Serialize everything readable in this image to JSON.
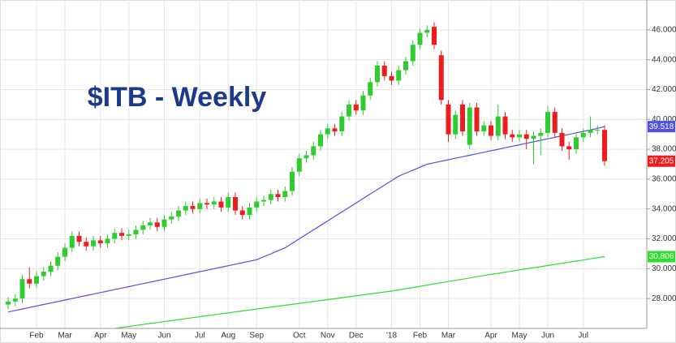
{
  "chart_data": {
    "type": "candlestick",
    "title": "$ITB - Weekly",
    "categories": [
      null,
      null,
      null,
      null,
      "Feb",
      null,
      null,
      null,
      "Mar",
      null,
      null,
      null,
      null,
      "Apr",
      null,
      null,
      null,
      "May",
      null,
      null,
      null,
      null,
      "Jun",
      null,
      null,
      null,
      null,
      "Jul",
      null,
      null,
      null,
      "Aug",
      null,
      null,
      null,
      "Sep",
      null,
      null,
      null,
      null,
      null,
      "Oct",
      null,
      null,
      null,
      "Nov",
      null,
      null,
      null,
      "Dec",
      null,
      null,
      null,
      null,
      "'18",
      null,
      null,
      null,
      "Feb",
      null,
      null,
      null,
      "Mar",
      null,
      null,
      null,
      null,
      null,
      "Apr",
      null,
      null,
      null,
      "May",
      null,
      null,
      null,
      "Jun",
      null,
      null,
      null,
      null,
      "Jul",
      null,
      null,
      null
    ],
    "open": [
      27.6,
      27.8,
      28.0,
      29.3,
      29.0,
      29.5,
      29.8,
      30.2,
      30.8,
      31.4,
      32.2,
      31.8,
      31.5,
      31.9,
      31.7,
      32.0,
      32.4,
      32.2,
      32.3,
      32.6,
      32.9,
      33.1,
      32.8,
      33.3,
      33.5,
      33.9,
      34.2,
      34.0,
      34.4,
      34.3,
      34.5,
      34.1,
      34.8,
      33.9,
      33.6,
      34.1,
      34.5,
      34.6,
      35.0,
      34.8,
      35.2,
      36.5,
      37.4,
      37.6,
      38.2,
      39.0,
      39.4,
      39.2,
      40.2,
      41.0,
      40.6,
      41.6,
      42.5,
      43.6,
      42.9,
      42.6,
      43.3,
      43.9,
      45.0,
      45.8,
      46.2,
      44.3,
      41.0,
      39.0,
      41.0,
      38.3,
      40.8,
      39.2,
      39.6,
      38.9,
      40.2,
      39.0,
      38.8,
      39.0,
      38.7,
      38.9,
      39.1,
      40.5,
      39.1,
      38.2,
      38.0,
      38.8,
      39.1,
      39.3,
      39.3
    ],
    "high": [
      28.1,
      28.3,
      29.6,
      30.1,
      29.8,
      30.1,
      30.5,
      31.1,
      31.7,
      32.5,
      32.5,
      32.1,
      32.2,
      32.2,
      32.3,
      32.7,
      32.7,
      32.6,
      32.9,
      33.2,
      33.4,
      33.4,
      33.6,
      33.8,
      34.2,
      34.5,
      34.5,
      34.7,
      34.7,
      34.8,
      34.8,
      35.1,
      35.1,
      34.2,
      34.4,
      34.8,
      34.9,
      35.3,
      35.3,
      35.5,
      36.8,
      37.7,
      37.9,
      38.5,
      39.3,
      39.7,
      39.7,
      40.5,
      41.3,
      41.3,
      41.9,
      42.8,
      43.9,
      43.9,
      43.2,
      43.6,
      44.2,
      45.3,
      46.1,
      46.3,
      46.5,
      44.6,
      41.3,
      40.6,
      41.3,
      41.1,
      41.1,
      39.9,
      39.9,
      41.0,
      40.5,
      39.3,
      39.3,
      39.3,
      39.2,
      39.4,
      40.9,
      40.8,
      39.4,
      38.5,
      39.1,
      39.4,
      40.2,
      39.6,
      39.6
    ],
    "low": [
      27.3,
      27.5,
      27.7,
      28.7,
      28.7,
      29.2,
      29.5,
      29.9,
      30.5,
      31.1,
      31.5,
      31.2,
      31.2,
      31.4,
      31.4,
      31.7,
      31.9,
      31.9,
      32.0,
      32.3,
      32.6,
      32.5,
      32.5,
      33.0,
      33.2,
      33.6,
      33.7,
      33.7,
      34.0,
      34.0,
      33.8,
      33.8,
      33.6,
      33.3,
      33.3,
      33.8,
      34.2,
      34.3,
      34.5,
      34.5,
      34.9,
      36.2,
      37.1,
      37.3,
      37.9,
      38.7,
      38.9,
      38.9,
      39.9,
      40.3,
      40.3,
      41.3,
      42.2,
      42.6,
      42.3,
      42.3,
      43.0,
      43.6,
      44.7,
      45.5,
      44.7,
      41.0,
      38.5,
      38.7,
      38.9,
      38.0,
      38.9,
      38.9,
      38.6,
      38.6,
      38.7,
      38.5,
      38.5,
      38.0,
      37.0,
      37.6,
      38.8,
      38.8,
      37.9,
      37.3,
      37.7,
      38.5,
      38.8,
      39.0,
      36.9
    ],
    "close": [
      27.8,
      28.0,
      29.3,
      29.0,
      29.5,
      29.8,
      30.2,
      30.8,
      31.4,
      32.2,
      31.8,
      31.5,
      31.9,
      31.7,
      32.0,
      32.4,
      32.2,
      32.3,
      32.6,
      32.9,
      33.1,
      32.8,
      33.3,
      33.5,
      33.9,
      34.2,
      34.0,
      34.4,
      34.3,
      34.5,
      34.1,
      34.8,
      33.9,
      33.6,
      34.1,
      34.5,
      34.6,
      35.0,
      34.8,
      35.2,
      36.5,
      37.4,
      37.6,
      38.2,
      39.0,
      39.4,
      39.2,
      40.2,
      41.0,
      40.6,
      41.6,
      42.5,
      43.6,
      42.9,
      42.6,
      43.3,
      43.9,
      45.0,
      45.8,
      46.0,
      45.0,
      41.3,
      39.0,
      40.3,
      39.2,
      40.8,
      39.2,
      39.6,
      38.9,
      40.2,
      39.0,
      38.8,
      39.0,
      38.7,
      38.9,
      39.1,
      40.5,
      39.1,
      38.2,
      38.0,
      38.8,
      39.1,
      39.3,
      39.3,
      37.205
    ],
    "up_color": "#2ecc2e",
    "down_color": "#ee1c1c",
    "series": [
      {
        "color": "#5050e6",
        "values": [
          27.1,
          27.2,
          27.3,
          27.4,
          27.5,
          27.6,
          27.7,
          27.8,
          27.9,
          28.0,
          28.1,
          28.2,
          28.3,
          28.4,
          28.5,
          28.6,
          28.7,
          28.8,
          28.9,
          29.0,
          29.1,
          29.2,
          29.3,
          29.4,
          29.5,
          29.6,
          29.7,
          29.8,
          29.9,
          30.0,
          30.1,
          30.2,
          30.3,
          30.4,
          30.5,
          30.6,
          30.8,
          31.0,
          31.2,
          31.4,
          31.7,
          32.0,
          32.3,
          32.6,
          32.9,
          33.2,
          33.5,
          33.8,
          34.1,
          34.4,
          34.7,
          35.0,
          35.3,
          35.6,
          35.9,
          36.2,
          36.4,
          36.6,
          36.8,
          37.0,
          37.1,
          37.2,
          37.3,
          37.4,
          37.5,
          37.6,
          37.7,
          37.8,
          37.9,
          38.0,
          38.1,
          38.2,
          38.3,
          38.4,
          38.5,
          38.6,
          38.7,
          38.8,
          38.9,
          39.0,
          39.1,
          39.2,
          39.3,
          39.4,
          39.518
        ]
      },
      {
        "color": "#2fdc2f",
        "values": [
          null,
          null,
          null,
          null,
          null,
          null,
          null,
          null,
          null,
          null,
          null,
          null,
          null,
          null,
          null,
          26.0,
          26.07,
          26.13,
          26.2,
          26.26,
          26.33,
          26.39,
          26.46,
          26.52,
          26.59,
          26.65,
          26.72,
          26.78,
          26.85,
          26.91,
          26.98,
          27.04,
          27.11,
          27.17,
          27.23,
          27.3,
          27.36,
          27.42,
          27.49,
          27.55,
          27.61,
          27.68,
          27.74,
          27.8,
          27.87,
          27.93,
          27.99,
          28.06,
          28.12,
          28.18,
          28.25,
          28.31,
          28.37,
          28.44,
          28.5,
          28.58,
          28.66,
          28.74,
          28.82,
          28.9,
          28.98,
          29.06,
          29.14,
          29.22,
          29.3,
          29.38,
          29.46,
          29.54,
          29.62,
          29.69,
          29.77,
          29.84,
          29.92,
          29.99,
          30.07,
          30.14,
          30.21,
          30.29,
          30.36,
          30.44,
          30.51,
          30.58,
          30.66,
          30.73,
          30.806
        ]
      }
    ],
    "ylim": [
      26,
      48
    ],
    "yticks": [
      {
        "value": 28,
        "label": "28.000"
      },
      {
        "value": 30,
        "label": "30.000"
      },
      {
        "value": 32,
        "label": "32.000"
      },
      {
        "value": 34,
        "label": "34.000"
      },
      {
        "value": 36,
        "label": "36.000"
      },
      {
        "value": 38,
        "label": "38.000"
      },
      {
        "value": 40,
        "label": "40.000"
      },
      {
        "value": 42,
        "label": "42.000"
      },
      {
        "value": 44,
        "label": "44.000"
      },
      {
        "value": 46,
        "label": "46.000"
      }
    ],
    "grid": true
  }
}
